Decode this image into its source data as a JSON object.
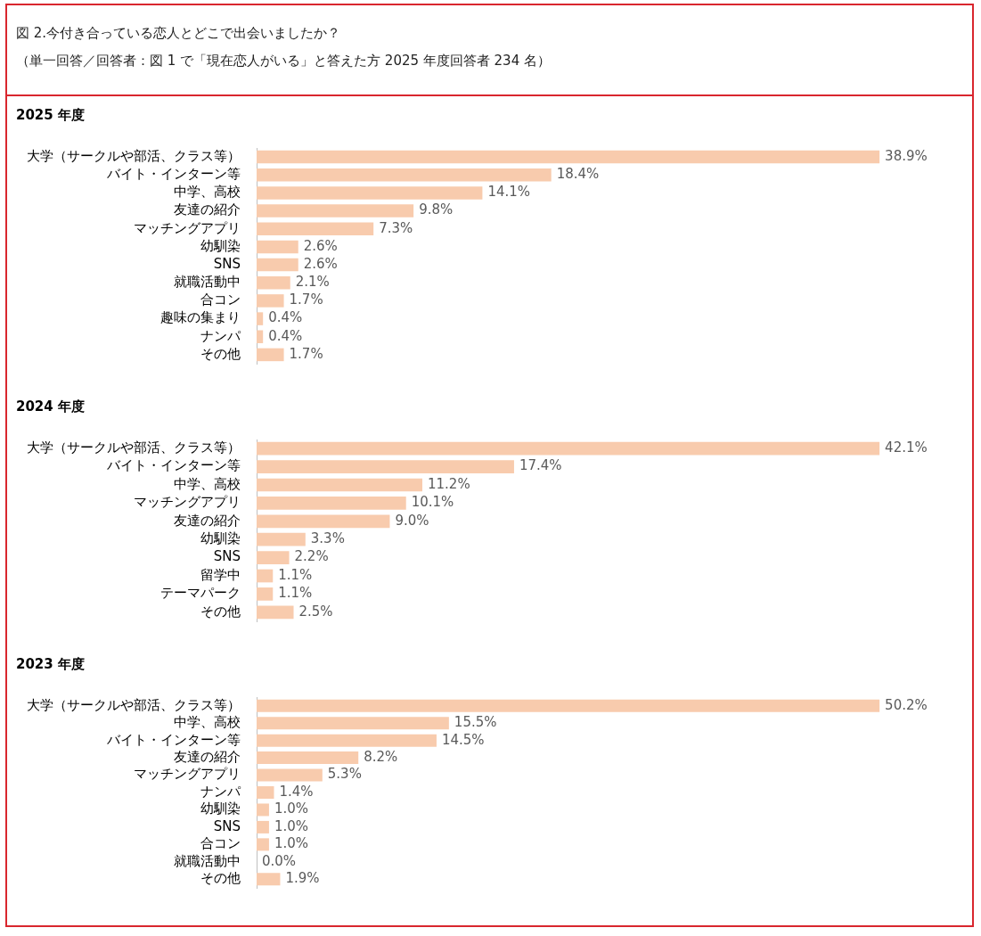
{
  "chart_data": [
    {
      "type": "other",
      "title": "図 2.今付き合っている恋人とどこで出会いましたか？",
      "subtitle": "（単一回答／回答者：図 1 で「現在恋人がいる」と答えた方 2025 年度回答者 234 名）"
    },
    {
      "type": "bar",
      "orientation": "horizontal",
      "title": "2025 年度",
      "legend": false,
      "grid": false,
      "color": "#f8cbad",
      "categories": [
        "大学（サークルや部活、クラス等）",
        "バイト・インターン等",
        "中学、高校",
        "友達の紹介",
        "マッチングアプリ",
        "幼馴染",
        "SNS",
        "就職活動中",
        "合コン",
        "趣味の集まり",
        "ナンパ",
        "その他"
      ],
      "values": [
        38.9,
        18.4,
        14.1,
        9.8,
        7.3,
        2.6,
        2.6,
        2.1,
        1.7,
        0.4,
        0.4,
        1.7
      ],
      "value_labels": [
        "38.9%",
        "18.4%",
        "14.1%",
        "9.8%",
        "7.3%",
        "2.6%",
        "2.6%",
        "2.1%",
        "1.7%",
        "0.4%",
        "0.4%",
        "1.7%"
      ]
    },
    {
      "type": "bar",
      "orientation": "horizontal",
      "title": "2024 年度",
      "legend": false,
      "grid": false,
      "color": "#f8cbad",
      "categories": [
        "大学（サークルや部活、クラス等）",
        "バイト・インターン等",
        "中学、高校",
        "マッチングアプリ",
        "友達の紹介",
        "幼馴染",
        "SNS",
        "留学中",
        "テーマパーク",
        "その他"
      ],
      "values": [
        42.1,
        17.4,
        11.2,
        10.1,
        9.0,
        3.3,
        2.2,
        1.1,
        1.1,
        2.5
      ],
      "value_labels": [
        "42.1%",
        "17.4%",
        "11.2%",
        "10.1%",
        "9.0%",
        "3.3%",
        "2.2%",
        "1.1%",
        "1.1%",
        "2.5%"
      ]
    },
    {
      "type": "bar",
      "orientation": "horizontal",
      "title": "2023 年度",
      "legend": false,
      "grid": false,
      "color": "#f8cbad",
      "categories": [
        "大学（サークルや部活、クラス等）",
        "中学、高校",
        "バイト・インターン等",
        "友達の紹介",
        "マッチングアプリ",
        "ナンパ",
        "幼馴染",
        "SNS",
        "合コン",
        "就職活動中",
        "その他"
      ],
      "values": [
        50.2,
        15.5,
        14.5,
        8.2,
        5.3,
        1.4,
        1.0,
        1.0,
        1.0,
        0.0,
        1.9
      ],
      "value_labels": [
        "50.2%",
        "15.5%",
        "14.5%",
        "8.2%",
        "5.3%",
        "1.4%",
        "1.0%",
        "1.0%",
        "1.0%",
        "0.0%",
        "1.9%"
      ]
    }
  ]
}
